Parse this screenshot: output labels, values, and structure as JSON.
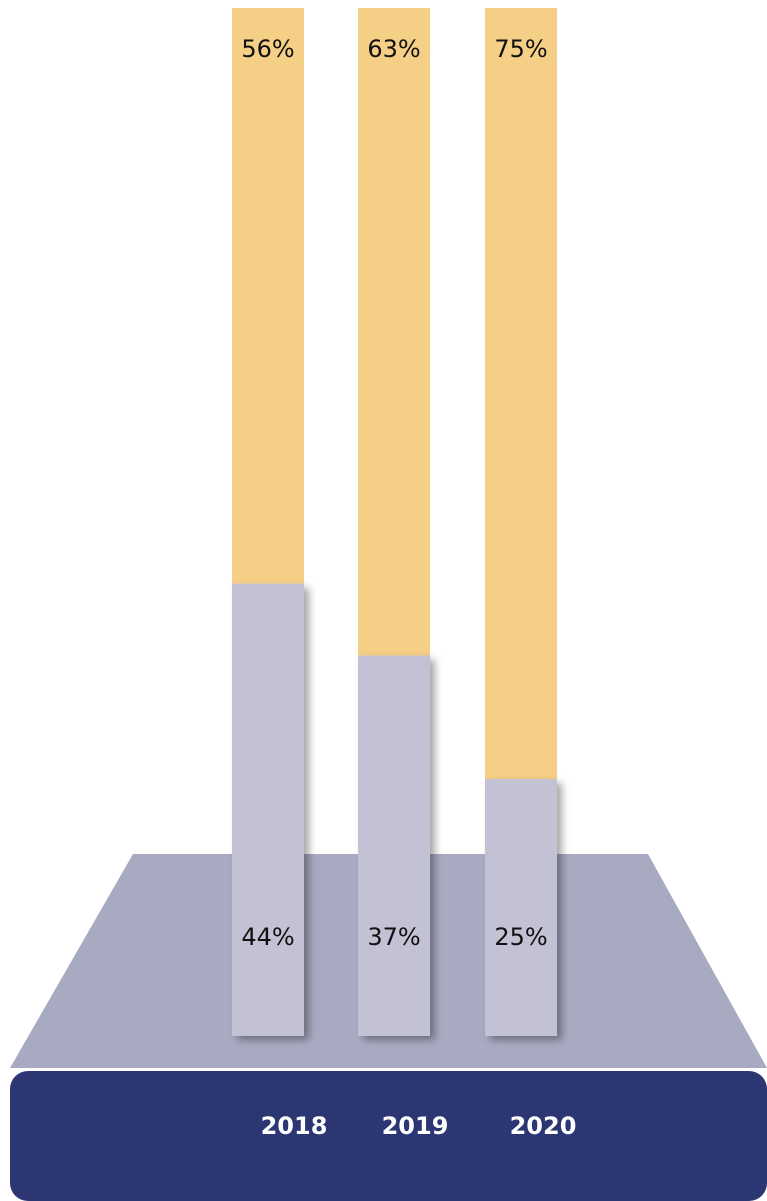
{
  "chart_data": {
    "type": "bar",
    "stacked": true,
    "categories": [
      "2018",
      "2019",
      "2020"
    ],
    "series": [
      {
        "values": [
          44,
          37,
          25
        ],
        "labels": [
          "44%",
          "37%",
          "25%"
        ],
        "color": "#c2c2d4"
      },
      {
        "values": [
          56,
          63,
          75
        ],
        "labels": [
          "56%",
          "63%",
          "75%"
        ],
        "color": "#f6cf86"
      }
    ],
    "ylim": [
      0,
      100
    ],
    "grid": false,
    "legend": "none",
    "colors": {
      "platform": "#a8aac2",
      "base": "#2b3672",
      "year_text": "#ffffff"
    }
  }
}
